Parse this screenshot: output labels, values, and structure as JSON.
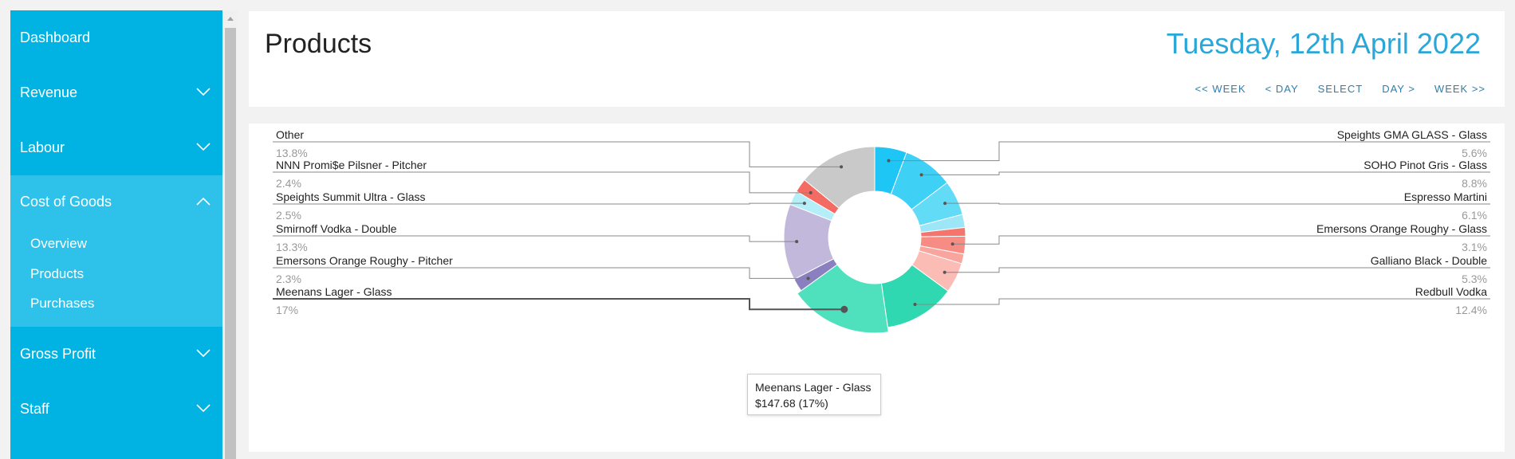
{
  "sidebar": {
    "items": [
      {
        "label": "Dashboard"
      },
      {
        "label": "Revenue"
      },
      {
        "label": "Labour"
      },
      {
        "label": "Cost of Goods"
      },
      {
        "label": "Gross Profit"
      },
      {
        "label": "Staff"
      }
    ],
    "subitems": [
      {
        "label": "Overview"
      },
      {
        "label": "Products"
      },
      {
        "label": "Purchases"
      }
    ]
  },
  "header": {
    "title": "Products",
    "date": "Tuesday, 12th April 2022",
    "nav": [
      "<< WEEK",
      "< DAY",
      "SELECT",
      "DAY >",
      "WEEK >>"
    ]
  },
  "chart_data": {
    "type": "pie",
    "variant": "donut",
    "slices": [
      {
        "label": "Speights GMA GLASS - Glass",
        "percent": "5.6%",
        "value": 5.6,
        "color": "#1ec6f5"
      },
      {
        "label": "SOHO Pinot Gris - Glass",
        "percent": "8.8%",
        "value": 8.8,
        "color": "#3ed0f5"
      },
      {
        "label": "Espresso Martini",
        "percent": "6.1%",
        "value": 6.1,
        "color": "#62dbf7"
      },
      {
        "label": "",
        "value": 2.3,
        "color": "#9de6f8"
      },
      {
        "label": "",
        "value": 1.5,
        "color": "#f5746b"
      },
      {
        "label": "Emersons Orange Roughy - Glass",
        "percent": "3.1%",
        "value": 3.1,
        "color": "#f78c84"
      },
      {
        "label": "",
        "value": 1.7,
        "color": "#f9a49d"
      },
      {
        "label": "Galliano Black - Double",
        "percent": "5.3%",
        "value": 5.3,
        "color": "#fbbcb6"
      },
      {
        "label": "Redbull Vodka",
        "percent": "12.4%",
        "value": 12.4,
        "color": "#2fd8b0"
      },
      {
        "label": "Meenans Lager - Glass",
        "percent": "17%",
        "value": 17,
        "color": "#4fe0bd"
      },
      {
        "label": "Emersons Orange Roughy - Pitcher",
        "percent": "2.3%",
        "value": 2.3,
        "color": "#8a7fbf"
      },
      {
        "label": "Smirnoff Vodka - Double",
        "percent": "13.3%",
        "value": 13.3,
        "color": "#c2b8dc"
      },
      {
        "label": "Speights Summit Ultra - Glass",
        "percent": "2.5%",
        "value": 2.5,
        "color": "#b4eef9"
      },
      {
        "label": "NNN Promi$e Pilsner - Pitcher",
        "percent": "2.4%",
        "value": 2.4,
        "color": "#f36b63"
      },
      {
        "label": "Other",
        "percent": "13.8%",
        "value": 13.8,
        "color": "#c9c9c9"
      }
    ],
    "hovered": "Meenans Lager - Glass"
  },
  "tooltip": {
    "title": "Meenans Lager - Glass",
    "value": "$147.68 (17%)"
  }
}
